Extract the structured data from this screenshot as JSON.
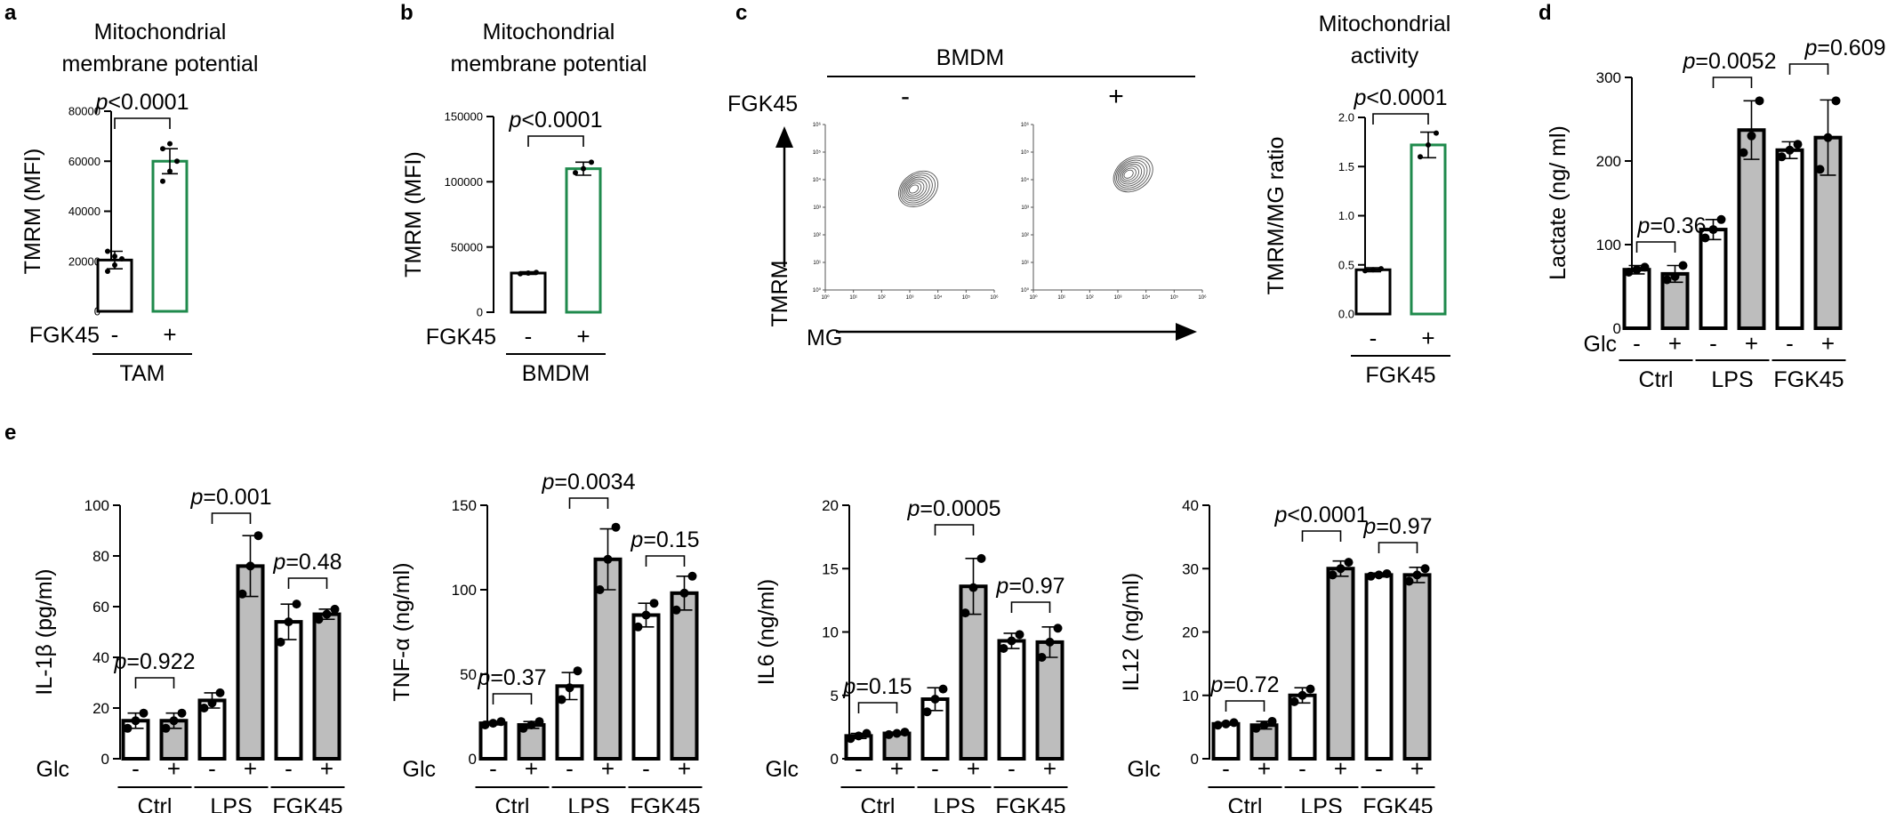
{
  "panels": {
    "a": {
      "letter": "a",
      "title": [
        "Mitochondrial",
        "membrane potential"
      ],
      "ylabel": "TMRM (MFI)",
      "ylim": [
        0,
        80000
      ],
      "yticks": [
        "0",
        "20000",
        "40000",
        "60000",
        "80000"
      ],
      "row_label": "FGK45",
      "xlabels": [
        "-",
        "+"
      ],
      "group": "TAM",
      "pvalue": "p<0.0001"
    },
    "b": {
      "letter": "b",
      "title": [
        "Mitochondrial",
        "membrane potential"
      ],
      "ylabel": "TMRM (MFI)",
      "ylim": [
        0,
        150000
      ],
      "yticks": [
        "0",
        "50000",
        "100000",
        "150000"
      ],
      "row_label": "FGK45",
      "xlabels": [
        "-",
        "+"
      ],
      "group": "BMDM",
      "pvalue": "p<0.0001"
    },
    "c": {
      "letter": "c",
      "flow": {
        "header": "BMDM",
        "row_label": "FGK45",
        "conditions": [
          "-",
          "+"
        ],
        "y_axis": "TMRM",
        "x_axis": "MG",
        "tick_labels": [
          "10⁰",
          "10¹",
          "10²",
          "10³",
          "10⁴",
          "10⁵",
          "10⁶"
        ]
      },
      "title": [
        "Mitochondrial",
        "activity"
      ],
      "ylabel": "TMRM/MG ratio",
      "ylim": [
        0,
        2.0
      ],
      "yticks": [
        "0.0",
        "0.5",
        "1.0",
        "1.5",
        "2.0"
      ],
      "xlabels": [
        "-",
        "+"
      ],
      "group": "FGK45",
      "pvalue": "p<0.0001"
    },
    "d": {
      "letter": "d",
      "ylabel": "Lactate (ng/ ml)",
      "ylim": [
        0,
        300
      ],
      "yticks": [
        "0",
        "100",
        "200",
        "300"
      ],
      "glc_label": "Glc",
      "xlabels": [
        "-",
        "+",
        "-",
        "+",
        "-",
        "+"
      ],
      "groups": [
        "Ctrl",
        "LPS",
        "FGK45"
      ],
      "pvalues": [
        "p=0.36",
        "p=0.0052",
        "p=0.609"
      ]
    },
    "e": {
      "letter": "e",
      "glc_label": "Glc",
      "xlabels": [
        "-",
        "+",
        "-",
        "+",
        "-",
        "+"
      ],
      "groups": [
        "Ctrl",
        "LPS",
        "FGK45"
      ],
      "charts": [
        {
          "ylabel": "IL-1β (pg/ml)",
          "yticks": [
            "0",
            "20",
            "40",
            "60",
            "80",
            "100"
          ],
          "pvalues": [
            "p=0.922",
            "p=0.001",
            "p=0.48"
          ]
        },
        {
          "ylabel": "TNF-α (ng/ml)",
          "yticks": [
            "0",
            "50",
            "100",
            "150"
          ],
          "pvalues": [
            "p=0.37",
            "p=0.0034",
            "p=0.15"
          ]
        },
        {
          "ylabel": "IL6 (ng/ml)",
          "yticks": [
            "0",
            "5",
            "10",
            "15",
            "20"
          ],
          "pvalues": [
            "p=0.15",
            "p=0.0005",
            "p=0.97"
          ]
        },
        {
          "ylabel": "IL12 (ng/ml)",
          "yticks": [
            "0",
            "10",
            "20",
            "30",
            "40"
          ],
          "pvalues": [
            "p=0.72",
            "p<0.0001",
            "p=0.97"
          ]
        }
      ]
    }
  },
  "colors": {
    "ctrl_fill": "#ffffff",
    "treated_green": "#1f8a4c",
    "glc_gray": "#bdbdbd",
    "ink": "#000000",
    "contour": "#555555"
  },
  "chart_data": [
    {
      "type": "bar",
      "panel": "a",
      "title": "Mitochondrial membrane potential",
      "ylabel": "TMRM (MFI)",
      "ylim": [
        0,
        80000
      ],
      "categories": [
        "-",
        "+"
      ],
      "values": [
        20500,
        60000
      ],
      "errors": [
        3500,
        5000
      ],
      "points": [
        [
          16000,
          18500,
          21000,
          24000,
          22000
        ],
        [
          52000,
          56000,
          60000,
          65000,
          67000
        ]
      ]
    },
    {
      "type": "bar",
      "panel": "b",
      "title": "Mitochondrial membrane potential",
      "ylabel": "TMRM (MFI)",
      "ylim": [
        0,
        150000
      ],
      "categories": [
        "-",
        "+"
      ],
      "values": [
        30000,
        110000
      ],
      "errors": [
        1000,
        5000
      ],
      "points": [
        [
          29500,
          30000,
          30500
        ],
        [
          107000,
          110000,
          115000
        ]
      ]
    },
    {
      "type": "bar",
      "panel": "c",
      "title": "Mitochondrial activity",
      "ylabel": "TMRM/MG ratio",
      "ylim": [
        0,
        2.0
      ],
      "categories": [
        "-",
        "+"
      ],
      "values": [
        0.45,
        1.72
      ],
      "errors": [
        0.02,
        0.13
      ],
      "points": [
        [
          0.44,
          0.45,
          0.46
        ],
        [
          1.6,
          1.72,
          1.84
        ]
      ]
    },
    {
      "type": "bar",
      "panel": "d",
      "ylabel": "Lactate (ng/ ml)",
      "ylim": [
        0,
        300
      ],
      "categories": [
        "-",
        "+",
        "-",
        "+",
        "-",
        "+"
      ],
      "values": [
        70,
        65,
        118,
        237,
        213,
        228
      ],
      "errors": [
        5,
        10,
        12,
        35,
        10,
        45
      ],
      "points": [
        [
          67,
          70,
          73
        ],
        [
          58,
          62,
          75
        ],
        [
          108,
          118,
          130
        ],
        [
          210,
          230,
          272
        ],
        [
          205,
          213,
          220
        ],
        [
          190,
          228,
          272
        ]
      ]
    },
    {
      "type": "bar",
      "panel": "e1",
      "ylabel": "IL-1β (pg/ml)",
      "ylim": [
        0,
        100
      ],
      "categories": [
        "-",
        "+",
        "-",
        "+",
        "-",
        "+"
      ],
      "values": [
        15,
        15,
        23,
        76,
        54,
        57
      ],
      "errors": [
        3,
        3,
        3,
        12,
        7,
        2
      ],
      "points": [
        [
          12,
          15,
          18
        ],
        [
          12,
          15,
          18
        ],
        [
          20,
          22,
          26
        ],
        [
          65,
          76,
          88
        ],
        [
          46,
          54,
          61
        ],
        [
          55,
          57,
          59
        ]
      ]
    },
    {
      "type": "bar",
      "panel": "e2",
      "ylabel": "TNF-α (ng/ml)",
      "ylim": [
        0,
        150
      ],
      "categories": [
        "-",
        "+",
        "-",
        "+",
        "-",
        "+"
      ],
      "values": [
        21,
        20,
        43,
        118,
        85,
        98
      ],
      "errors": [
        1,
        2,
        8,
        18,
        7,
        10
      ],
      "points": [
        [
          20,
          21,
          22
        ],
        [
          18,
          20,
          22
        ],
        [
          35,
          42,
          52
        ],
        [
          100,
          118,
          137
        ],
        [
          78,
          85,
          92
        ],
        [
          88,
          98,
          108
        ]
      ]
    },
    {
      "type": "bar",
      "panel": "e3",
      "ylabel": "IL6 (ng/ml)",
      "ylim": [
        0,
        20
      ],
      "categories": [
        "-",
        "+",
        "-",
        "+",
        "-",
        "+"
      ],
      "values": [
        1.8,
        2.0,
        4.7,
        13.6,
        9.3,
        9.2
      ],
      "errors": [
        0.2,
        0.1,
        0.9,
        2.2,
        0.6,
        1.2
      ],
      "points": [
        [
          1.6,
          1.8,
          2.0
        ],
        [
          1.9,
          2.0,
          2.1
        ],
        [
          3.7,
          4.7,
          5.5
        ],
        [
          11.5,
          13.5,
          15.8
        ],
        [
          8.7,
          9.3,
          9.8
        ],
        [
          8.0,
          9.2,
          10.3
        ]
      ]
    },
    {
      "type": "bar",
      "panel": "e4",
      "ylabel": "IL12 (ng/ml)",
      "ylim": [
        0,
        40
      ],
      "categories": [
        "-",
        "+",
        "-",
        "+",
        "-",
        "+"
      ],
      "values": [
        5.5,
        5.3,
        10,
        30,
        29,
        29
      ],
      "errors": [
        0.2,
        0.6,
        1.2,
        1.2,
        0.3,
        1.2
      ],
      "points": [
        [
          5.3,
          5.5,
          5.7
        ],
        [
          4.8,
          5.3,
          5.9
        ],
        [
          9,
          10,
          11
        ],
        [
          29,
          30,
          31
        ],
        [
          28.8,
          29,
          29.2
        ],
        [
          28,
          29,
          30
        ]
      ]
    }
  ]
}
